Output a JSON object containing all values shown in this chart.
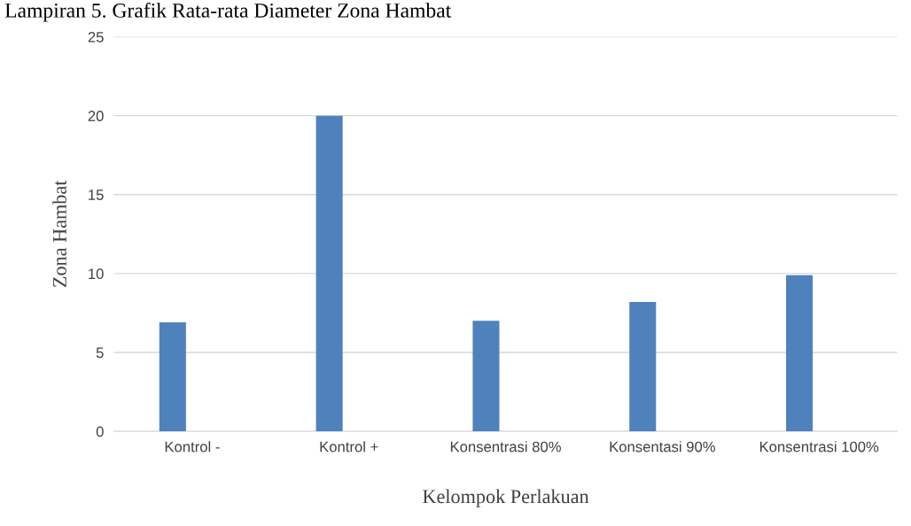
{
  "chart_data": {
    "type": "bar",
    "title": "Lampiran 5. Grafik Rata-rata Diameter Zona Hambat",
    "xlabel": "Kelompok Perlakuan",
    "ylabel": "Zona Hambat",
    "categories": [
      "Kontrol -",
      "Kontrol +",
      "Konsentrasi 80%",
      "Konsentasi 90%",
      "Konsentrasi 100%"
    ],
    "values": [
      6.9,
      20.0,
      7.0,
      8.2,
      9.9
    ],
    "color": "#4f81bd",
    "ylim": [
      0,
      25
    ],
    "yticks": [
      0,
      5,
      10,
      15,
      20,
      25
    ],
    "grid": "y"
  }
}
